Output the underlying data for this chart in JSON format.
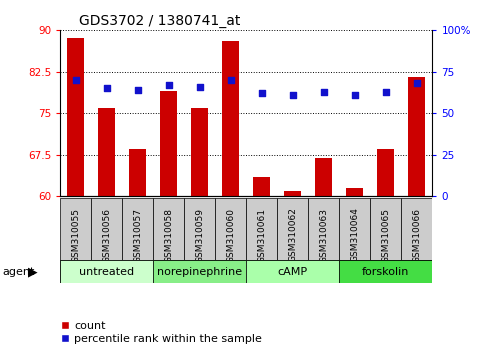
{
  "title": "GDS3702 / 1380741_at",
  "samples": [
    "GSM310055",
    "GSM310056",
    "GSM310057",
    "GSM310058",
    "GSM310059",
    "GSM310060",
    "GSM310061",
    "GSM310062",
    "GSM310063",
    "GSM310064",
    "GSM310065",
    "GSM310066"
  ],
  "bar_values": [
    88.5,
    76.0,
    68.5,
    79.0,
    76.0,
    88.0,
    63.5,
    61.0,
    67.0,
    61.5,
    68.5,
    81.5
  ],
  "percentile_values": [
    70,
    65,
    64,
    67,
    66,
    70,
    62,
    61,
    63,
    61,
    63,
    68
  ],
  "bar_color": "#cc0000",
  "percentile_color": "#1111cc",
  "ylim_left": [
    60,
    90
  ],
  "ylim_right": [
    0,
    100
  ],
  "yticks_left": [
    60,
    67.5,
    75,
    82.5,
    90
  ],
  "ytick_labels_left": [
    "60",
    "67.5",
    "75",
    "82.5",
    "90"
  ],
  "yticks_right": [
    0,
    25,
    50,
    75,
    100
  ],
  "ytick_labels_right": [
    "0",
    "25",
    "50",
    "75",
    "100%"
  ],
  "groups": [
    {
      "label": "untreated",
      "start": 0,
      "end": 3,
      "color": "#ccffcc"
    },
    {
      "label": "norepinephrine",
      "start": 3,
      "end": 6,
      "color": "#88ee88"
    },
    {
      "label": "cAMP",
      "start": 6,
      "end": 9,
      "color": "#aaffaa"
    },
    {
      "label": "forskolin",
      "start": 9,
      "end": 12,
      "color": "#44dd44"
    }
  ],
  "agent_label": "agent",
  "legend_count_label": "count",
  "legend_pct_label": "percentile rank within the sample",
  "bar_width": 0.55
}
